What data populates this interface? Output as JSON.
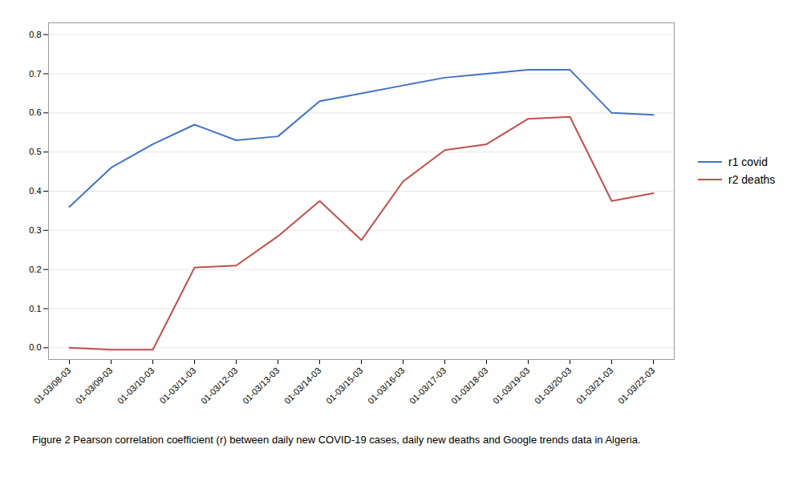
{
  "chart_data": {
    "type": "line",
    "caption": "Figure 2 Pearson correlation coefficient (r) between daily new COVID-19 cases, daily new deaths and Google trends data in Algeria.",
    "categories": [
      "01-03/08-03",
      "01-03/09-03",
      "01-03/10-03",
      "01-03/11-03",
      "01-03/12-03",
      "01-03/13-03",
      "01-03/14-03",
      "01-03/15-03",
      "01-03/16-03",
      "01-03/17-03",
      "01-03/18-03",
      "01-03/19-03",
      "01-03/20-03",
      "01-03/21-03",
      "01-03/22-03"
    ],
    "series": [
      {
        "name": "r1 covid",
        "color": "#4472C4",
        "values": [
          0.36,
          0.46,
          0.52,
          0.57,
          0.53,
          0.54,
          0.63,
          0.65,
          0.67,
          0.69,
          0.7,
          0.71,
          0.71,
          0.6,
          0.595
        ]
      },
      {
        "name": "r2 deaths",
        "color": "#C0504D",
        "values": [
          0.0,
          -0.005,
          -0.005,
          0.205,
          0.21,
          0.285,
          0.375,
          0.275,
          0.425,
          0.505,
          0.52,
          0.585,
          0.59,
          0.375,
          0.395
        ]
      }
    ],
    "ylim": [
      -0.03,
      0.83
    ],
    "yticks": [
      {
        "value": 0.0,
        "label": "0.0"
      },
      0.1,
      0.2,
      0.3,
      0.4,
      0.5,
      0.6,
      0.7,
      0.8
    ],
    "grid": true,
    "legend": "right"
  }
}
